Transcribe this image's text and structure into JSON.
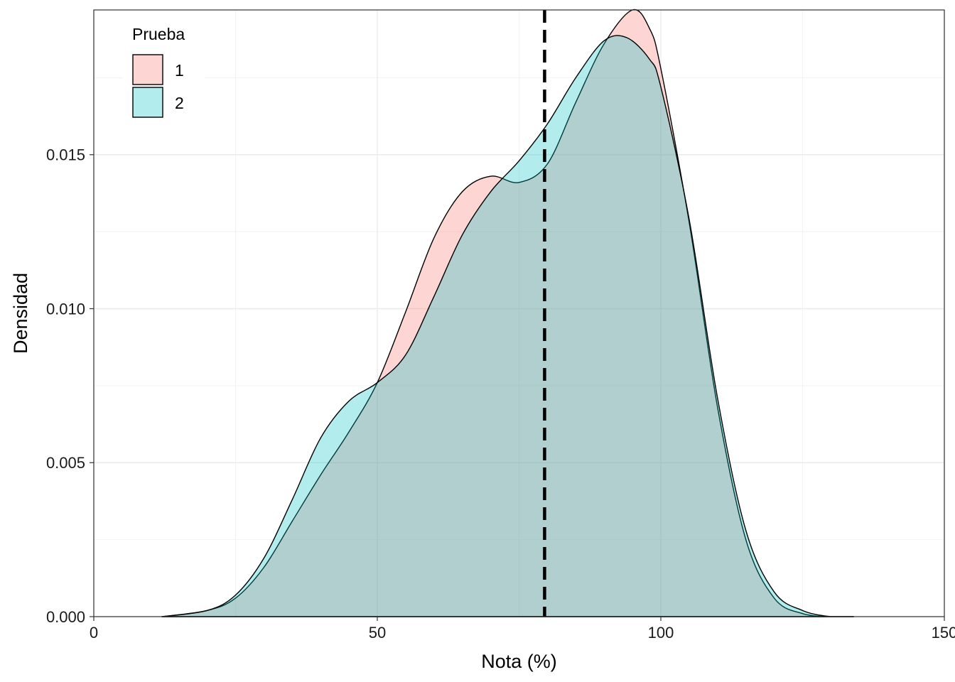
{
  "chart_data": {
    "type": "area",
    "xlabel": "Nota (%)",
    "ylabel": "Densidad",
    "xlim": [
      0,
      150
    ],
    "ylim": [
      0,
      0.0197
    ],
    "x_ticks": [
      0,
      50,
      100,
      150
    ],
    "x_tick_labels": [
      "0",
      "50",
      "100",
      "150"
    ],
    "y_ticks": [
      0,
      0.005,
      0.01,
      0.015
    ],
    "y_tick_labels": [
      "0.000",
      "0.005",
      "0.010",
      "0.015"
    ],
    "grid": true,
    "legend": {
      "title": "Prueba",
      "position": "top-left"
    },
    "reference_line": {
      "x": 79.5,
      "style": "dashed",
      "color": "#000000"
    },
    "series": [
      {
        "name": "1",
        "color": "#F8766D",
        "x": [
          12,
          20,
          25,
          30,
          35,
          40,
          45,
          50,
          55,
          60,
          65,
          70,
          75,
          80,
          85,
          90,
          95,
          98,
          100,
          105,
          110,
          115,
          120,
          125,
          130,
          134
        ],
        "y": [
          0,
          0.0002,
          0.0006,
          0.0016,
          0.0031,
          0.0046,
          0.006,
          0.0076,
          0.0099,
          0.0123,
          0.0138,
          0.0143,
          0.0141,
          0.0147,
          0.0167,
          0.0186,
          0.0197,
          0.0191,
          0.0178,
          0.0128,
          0.0068,
          0.0025,
          0.0006,
          0.0001,
          0,
          0
        ]
      },
      {
        "name": "2",
        "color": "#00BFC4",
        "x": [
          12,
          20,
          25,
          30,
          35,
          40,
          45,
          50,
          55,
          60,
          65,
          70,
          75,
          80,
          85,
          90,
          94,
          98,
          100,
          105,
          110,
          115,
          120,
          125,
          130,
          134
        ],
        "y": [
          0,
          0.0002,
          0.0007,
          0.0019,
          0.0038,
          0.0058,
          0.007,
          0.0076,
          0.0085,
          0.0104,
          0.0124,
          0.0138,
          0.0148,
          0.016,
          0.0175,
          0.0187,
          0.0188,
          0.0181,
          0.0172,
          0.0129,
          0.0071,
          0.0028,
          0.0008,
          0.0002,
          0,
          0
        ]
      }
    ]
  }
}
